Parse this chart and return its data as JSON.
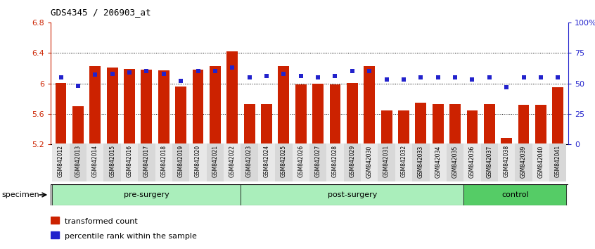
{
  "title": "GDS4345 / 206903_at",
  "samples": [
    "GSM842012",
    "GSM842013",
    "GSM842014",
    "GSM842015",
    "GSM842016",
    "GSM842017",
    "GSM842018",
    "GSM842019",
    "GSM842020",
    "GSM842021",
    "GSM842022",
    "GSM842023",
    "GSM842024",
    "GSM842025",
    "GSM842026",
    "GSM842027",
    "GSM842028",
    "GSM842029",
    "GSM842030",
    "GSM842031",
    "GSM842032",
    "GSM842033",
    "GSM842034",
    "GSM842035",
    "GSM842036",
    "GSM842037",
    "GSM842038",
    "GSM842039",
    "GSM842040",
    "GSM842041"
  ],
  "bar_values": [
    6.01,
    5.7,
    6.23,
    6.21,
    6.19,
    6.18,
    6.17,
    5.96,
    6.18,
    6.23,
    6.42,
    5.73,
    5.73,
    6.23,
    5.99,
    6.0,
    5.99,
    6.01,
    6.23,
    5.65,
    5.65,
    5.75,
    5.73,
    5.73,
    5.65,
    5.73,
    5.29,
    5.72,
    5.72,
    5.95
  ],
  "percentile_values": [
    55,
    48,
    57,
    58,
    59,
    60,
    58,
    52,
    60,
    60,
    63,
    55,
    56,
    58,
    56,
    55,
    56,
    60,
    60,
    53,
    53,
    55,
    55,
    55,
    53,
    55,
    47,
    55,
    55,
    55
  ],
  "groups": [
    {
      "label": "pre-surgery",
      "start": 0,
      "end": 11,
      "color": "#AAEEBB"
    },
    {
      "label": "post-surgery",
      "start": 11,
      "end": 24,
      "color": "#AAEEBB"
    },
    {
      "label": "control",
      "start": 24,
      "end": 30,
      "color": "#55CC66"
    }
  ],
  "bar_color": "#CC2200",
  "dot_color": "#2222CC",
  "ylim_left": [
    5.2,
    6.8
  ],
  "ylim_right": [
    0,
    100
  ],
  "yticks_left": [
    5.2,
    5.6,
    6.0,
    6.4,
    6.8
  ],
  "ytick_labels_left": [
    "5.2",
    "5.6",
    "6",
    "6.4",
    "6.8"
  ],
  "yticks_right": [
    0,
    25,
    50,
    75,
    100
  ],
  "ytick_labels_right": [
    "0",
    "25",
    "50",
    "75",
    "100%"
  ],
  "grid_values": [
    5.6,
    6.0,
    6.4
  ],
  "bg_color": "#FFFFFF",
  "plot_bg": "#FFFFFF",
  "specimen_label": "specimen",
  "legend_items": [
    "transformed count",
    "percentile rank within the sample"
  ]
}
